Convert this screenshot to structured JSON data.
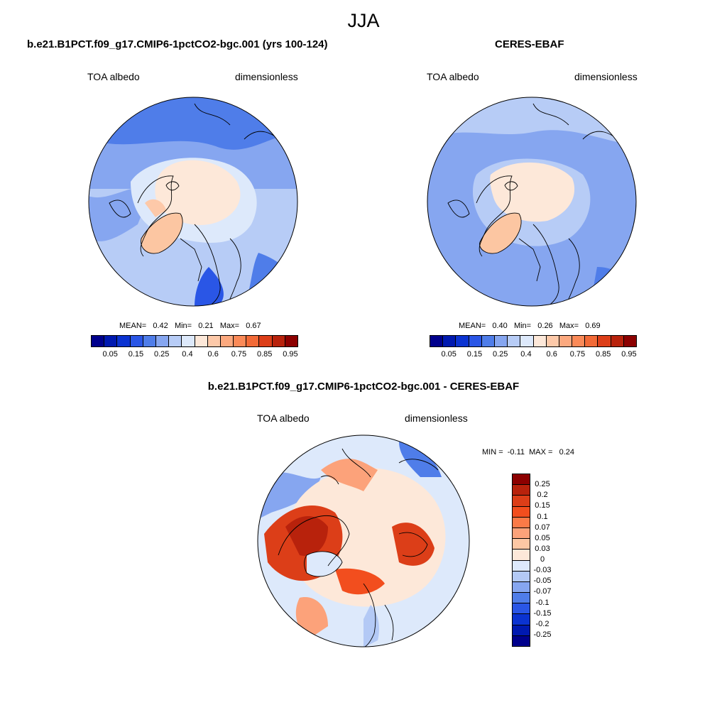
{
  "figure": {
    "title": "JJA"
  },
  "panels": [
    {
      "title": "b.e21.B1PCT.f09_g17.CMIP6-1pctCO2-bgc.001 (yrs 100-124)",
      "left_label": "TOA albedo",
      "right_label": "dimensionless",
      "stats": "MEAN=   0.42   Min=   0.21   Max=   0.67",
      "stats_values": {
        "mean": 0.42,
        "min": 0.21,
        "max": 0.67
      }
    },
    {
      "title": "CERES-EBAF",
      "left_label": "TOA albedo",
      "right_label": "dimensionless",
      "stats": "MEAN=   0.40   Min=   0.26   Max=   0.69",
      "stats_values": {
        "mean": 0.4,
        "min": 0.26,
        "max": 0.69
      }
    },
    {
      "title": "b.e21.B1PCT.f09_g17.CMIP6-1pctCO2-bgc.001 - CERES-EBAF",
      "left_label": "TOA albedo",
      "right_label": "dimensionless",
      "stats": "MIN =  -0.11  MAX =   0.24",
      "stats_values": {
        "min": -0.11,
        "max": 0.24
      }
    }
  ],
  "colorbar_abs": {
    "colors": [
      "#00008c",
      "#0019b0",
      "#0b33d1",
      "#2a56e6",
      "#4f7de9",
      "#86a6f0",
      "#b7ccf6",
      "#dde9fb",
      "#fde8d9",
      "#fdc9a9",
      "#fca97f",
      "#fb8a58",
      "#f26a37",
      "#dc3e18",
      "#b8220c",
      "#8c0000"
    ],
    "labels": [
      "0.05",
      "0.15",
      "0.25",
      "0.4",
      "0.6",
      "0.75",
      "0.85",
      "0.95"
    ],
    "label_boundaries": [
      1,
      3,
      5,
      7,
      9,
      11,
      13,
      15
    ]
  },
  "colorbar_diff": {
    "colors": [
      "#8c0000",
      "#b8220c",
      "#dc3e18",
      "#f24e1e",
      "#fb7a47",
      "#fca27a",
      "#fdc7a4",
      "#fde8d9",
      "#dde9fb",
      "#b3c9f5",
      "#86a6f0",
      "#4f7de9",
      "#2a56e6",
      "#0b33d1",
      "#0019b0",
      "#00008c"
    ],
    "labels": [
      "0.25",
      "0.2",
      "0.15",
      "0.1",
      "0.07",
      "0.05",
      "0.03",
      "0",
      "-0.03",
      "-0.05",
      "-0.07",
      "-0.1",
      "-0.15",
      "-0.2",
      "-0.25"
    ]
  }
}
